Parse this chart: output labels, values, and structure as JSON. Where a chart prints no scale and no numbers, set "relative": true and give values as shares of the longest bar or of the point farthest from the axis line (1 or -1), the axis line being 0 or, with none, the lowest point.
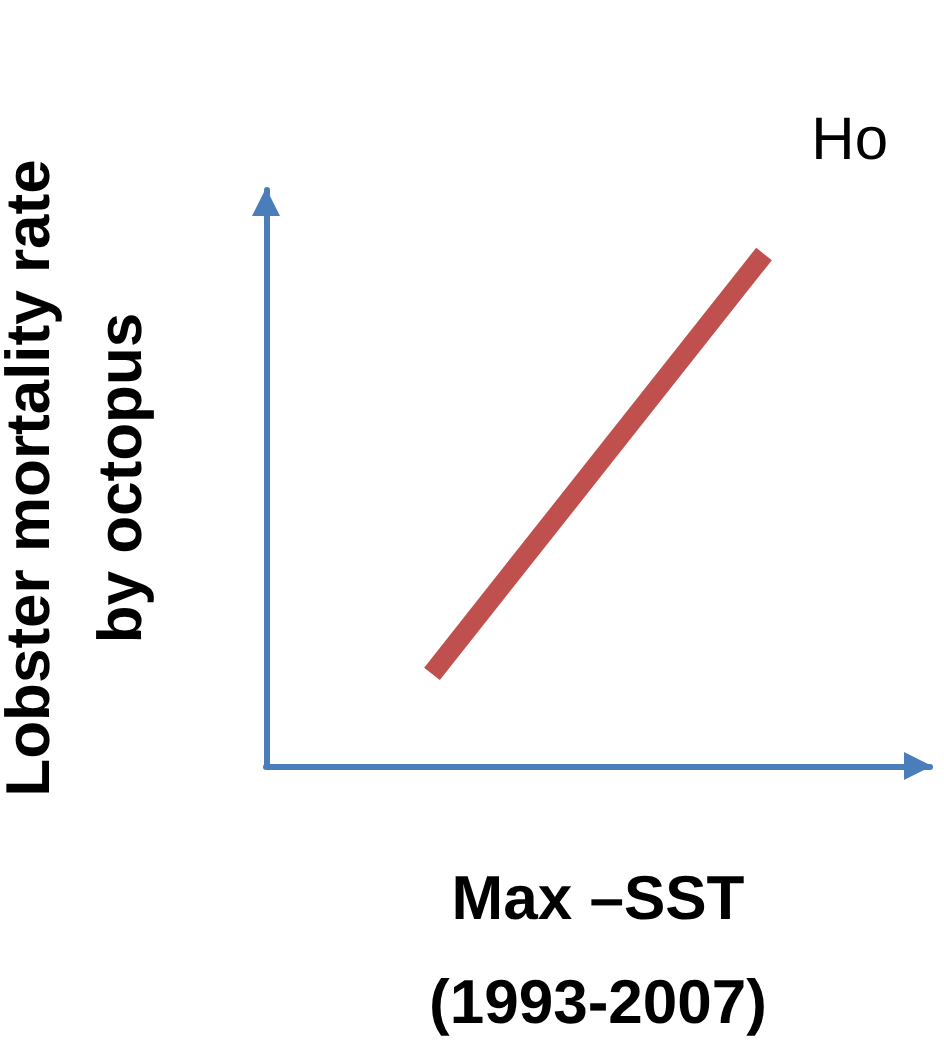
{
  "chart_data": {
    "type": "line",
    "relative": true,
    "xlabel": "Max –SST\n(1993-2007)",
    "ylabel": "Lobster mortality rate\nby octopus",
    "categories": [
      null,
      null
    ],
    "series": [
      {
        "color": "#c0504d",
        "values": [
          0.18,
          1
        ]
      }
    ],
    "annotations": [
      "Ho"
    ],
    "grid": false,
    "marker": "none"
  }
}
